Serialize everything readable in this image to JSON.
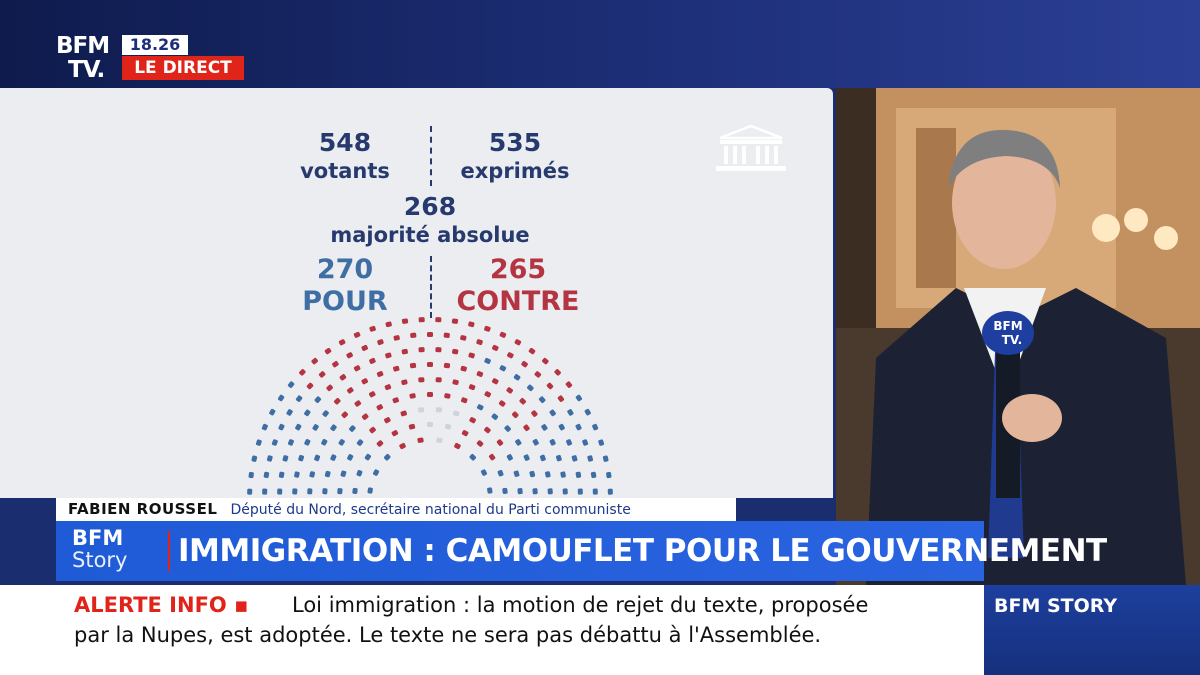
{
  "header": {
    "logo_line1": "BFM",
    "logo_line2": "TV.",
    "clock": "18.26",
    "live_label": "LE DIRECT"
  },
  "results": {
    "votants": {
      "value": "548",
      "label": "votants"
    },
    "exprimes": {
      "value": "535",
      "label": "exprimés"
    },
    "majorite": {
      "value": "268",
      "label": "majorité absolue"
    },
    "pour": {
      "value": "270",
      "label": "POUR",
      "color": "#3f6ea5"
    },
    "contre": {
      "value": "265",
      "label": "CONTRE",
      "color": "#b53442"
    },
    "abstention_color": "#cfd3da"
  },
  "lower_third": {
    "name": "FABIEN ROUSSEL",
    "role": "Député du Nord, secrétaire national du Parti communiste"
  },
  "headline": {
    "logo_line1": "BFM",
    "logo_line2": "Story",
    "title": "IMMIGRATION : CAMOUFLET POUR LE GOUVERNEMENT"
  },
  "ticker": {
    "tag": "ALERTE INFO ▪",
    "line1": "Loi immigration : la motion de rejet du texte, proposée",
    "line2": "par la Nupes, est adoptée. Le texte ne sera pas débattu à l'Assemblée."
  },
  "channel": {
    "label": "BFM STORY"
  },
  "microphone": {
    "label_line1": "BFM",
    "label_line2": "TV."
  }
}
